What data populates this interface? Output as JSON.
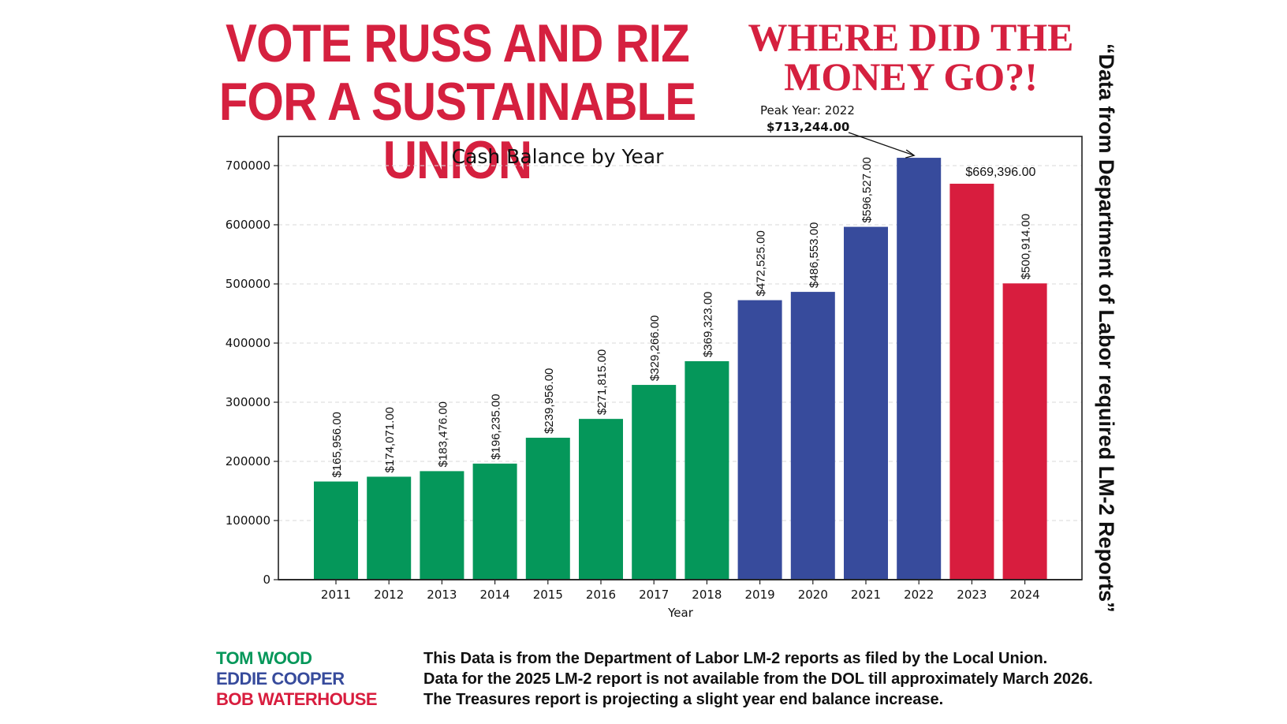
{
  "header": {
    "headline_line1": "VOTE RUSS AND RIZ",
    "headline_line2": "FOR A SUSTAINABLE UNION",
    "question_line1": "WHERE DID THE",
    "question_line2": "MONEY GO?!"
  },
  "side_note": "“Data from Department of Labor required LM-2 Reports”",
  "colors": {
    "headline": "#d5203f",
    "green": "#05975a",
    "blue": "#374b9c",
    "red": "#d81d3e"
  },
  "chart_data": {
    "type": "bar",
    "title": "Cash Balance by Year",
    "xlabel": "Year",
    "ylabel": "",
    "ylim": [
      0,
      750000
    ],
    "yticks": [
      0,
      100000,
      200000,
      300000,
      400000,
      500000,
      600000,
      700000
    ],
    "ytick_labels": [
      "0",
      "100000",
      "200000",
      "300000",
      "400000",
      "500000",
      "600000",
      "700000"
    ],
    "grid": "horizontal dashed",
    "categories": [
      "2011",
      "2012",
      "2013",
      "2014",
      "2015",
      "2016",
      "2017",
      "2018",
      "2019",
      "2020",
      "2021",
      "2022",
      "2023",
      "2024"
    ],
    "values": [
      165956,
      174071,
      183476,
      196235,
      239956,
      271815,
      329266,
      369323,
      472525,
      486553,
      596527,
      713244,
      669396,
      500914
    ],
    "data_labels": [
      "$165,956.00",
      "$174,071.00",
      "$183,476.00",
      "$196,235.00",
      "$239,956.00",
      "$271,815.00",
      "$329,266.00",
      "$369,323.00",
      "$472,525.00",
      "$486,553.00",
      "$596,527.00",
      "",
      "$669,396.00",
      "$500,914.00"
    ],
    "label_orientation": [
      "vertical",
      "vertical",
      "vertical",
      "vertical",
      "vertical",
      "vertical",
      "vertical",
      "vertical",
      "vertical",
      "vertical",
      "vertical",
      "none",
      "horizontal",
      "vertical"
    ],
    "bar_color_group": [
      "green",
      "green",
      "green",
      "green",
      "green",
      "green",
      "green",
      "green",
      "blue",
      "blue",
      "blue",
      "blue",
      "red",
      "red"
    ],
    "annotation": {
      "line1": "Peak Year: 2022",
      "line2": "$713,244.00",
      "target_category": "2022",
      "target_value": 713244
    }
  },
  "legend_names": [
    {
      "name": "TOM WOOD",
      "color_group": "green"
    },
    {
      "name": "EDDIE COOPER",
      "color_group": "blue"
    },
    {
      "name": "BOB WATERHOUSE",
      "color_group": "red"
    }
  ],
  "notes": [
    "This Data is from the Department of Labor LM-2 reports as filed by the Local Union.",
    "Data for the 2025 LM-2 report is not available from the DOL till approximately March 2026.",
    "The Treasures report is projecting a slight year end balance increase."
  ]
}
